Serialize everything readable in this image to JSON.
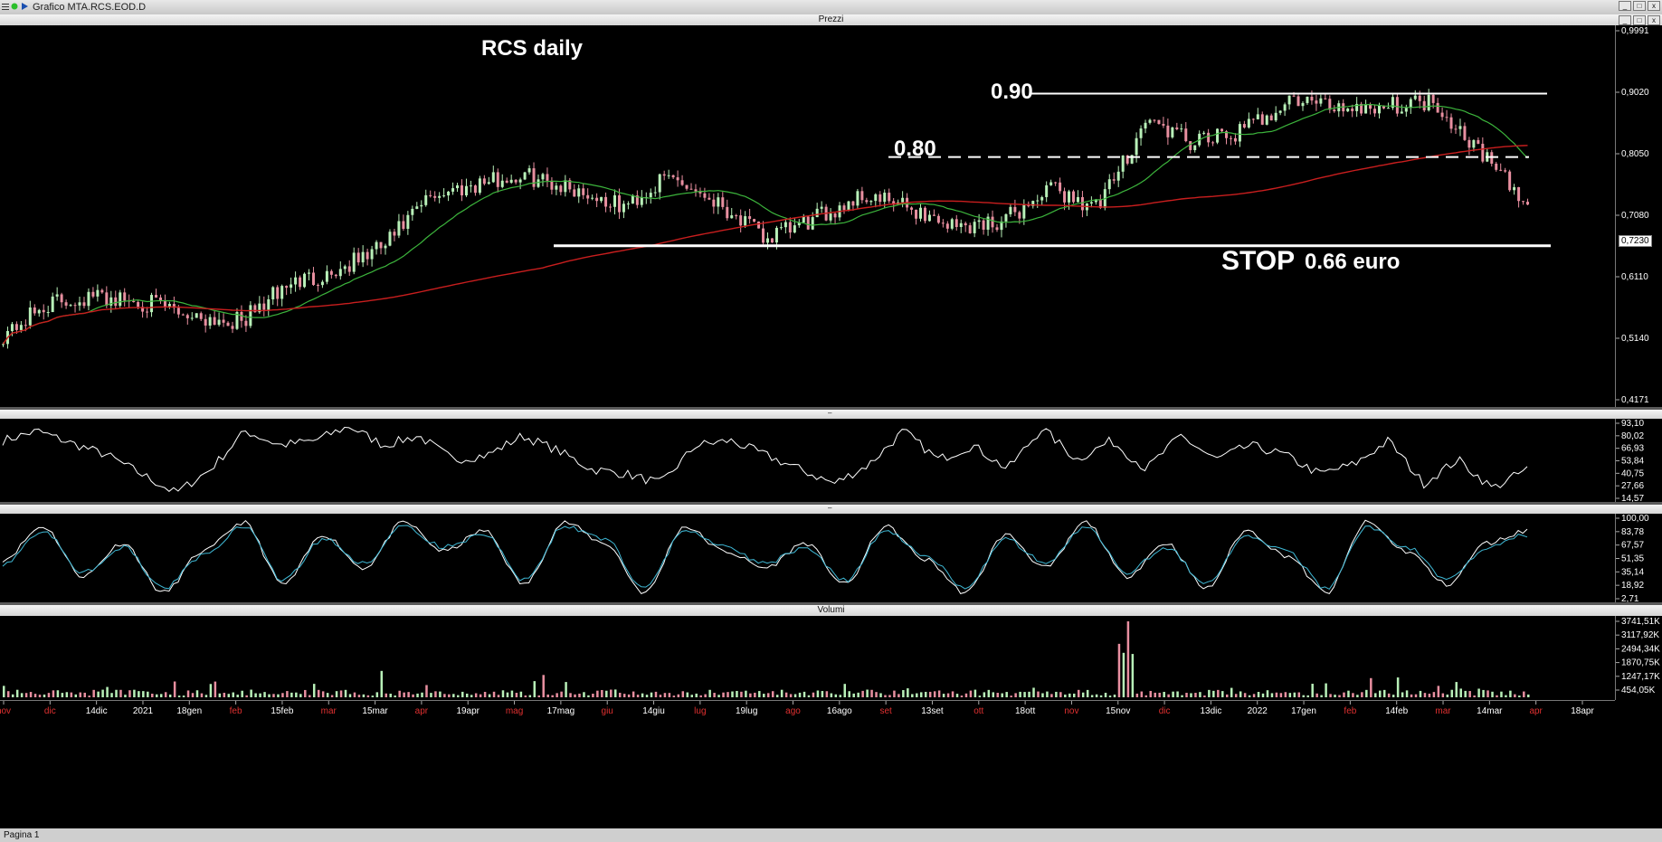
{
  "window": {
    "title": "Grafico MTA.RCS.EOD.D"
  },
  "panes": {
    "price_title": "Prezzi",
    "rsi_title": "",
    "stoch_title": "",
    "volume_title": "Volumi"
  },
  "annotations": {
    "chart_title": "RCS daily",
    "level_090": "0.90",
    "level_080": "0.80",
    "stop_word": "STOP",
    "stop_value": "0.66 euro"
  },
  "price_axis": {
    "ticks": [
      "0,9991",
      "0,9020",
      "0,8050",
      "0,7080",
      "0,6110",
      "0,5140",
      "0,4171"
    ],
    "last_price": "0,7230"
  },
  "rsi_axis": [
    "93,10",
    "80,02",
    "66,93",
    "53,84",
    "40,75",
    "27,66",
    "14,57"
  ],
  "stoch_axis": [
    "100,00",
    "83,78",
    "67,57",
    "51,35",
    "35,14",
    "18,92",
    "2,71"
  ],
  "volume_axis": [
    "3741,51K",
    "3117,92K",
    "2494,34K",
    "1870,75K",
    "1247,17K",
    "454,05K"
  ],
  "x_axis": {
    "labels": [
      {
        "t": "nov",
        "red": true
      },
      {
        "t": "dic",
        "red": true
      },
      {
        "t": "14dic",
        "red": false
      },
      {
        "t": "2021",
        "red": false
      },
      {
        "t": "18gen",
        "red": false
      },
      {
        "t": "feb",
        "red": true
      },
      {
        "t": "15feb",
        "red": false
      },
      {
        "t": "mar",
        "red": true
      },
      {
        "t": "15mar",
        "red": false
      },
      {
        "t": "apr",
        "red": true
      },
      {
        "t": "19apr",
        "red": false
      },
      {
        "t": "mag",
        "red": true
      },
      {
        "t": "17mag",
        "red": false
      },
      {
        "t": "giu",
        "red": true
      },
      {
        "t": "14giu",
        "red": false
      },
      {
        "t": "lug",
        "red": true
      },
      {
        "t": "19lug",
        "red": false
      },
      {
        "t": "ago",
        "red": true
      },
      {
        "t": "16ago",
        "red": false
      },
      {
        "t": "set",
        "red": true
      },
      {
        "t": "13set",
        "red": false
      },
      {
        "t": "ott",
        "red": true
      },
      {
        "t": "18ott",
        "red": false
      },
      {
        "t": "nov",
        "red": true
      },
      {
        "t": "15nov",
        "red": false
      },
      {
        "t": "dic",
        "red": true
      },
      {
        "t": "13dic",
        "red": false
      },
      {
        "t": "2022",
        "red": false
      },
      {
        "t": "17gen",
        "red": false
      },
      {
        "t": "feb",
        "red": true
      },
      {
        "t": "14feb",
        "red": false
      },
      {
        "t": "mar",
        "red": true
      },
      {
        "t": "14mar",
        "red": false
      },
      {
        "t": "apr",
        "red": true
      },
      {
        "t": "18apr",
        "red": false
      }
    ]
  },
  "status": {
    "text": "Pagina 1"
  },
  "colors": {
    "up": "#b8f0b8",
    "down": "#e88fa0",
    "ma_short": "#3cb43c",
    "ma_long": "#c81e1e",
    "stoch_k": "#ffffff",
    "stoch_d": "#3fb9d6"
  },
  "chart_data": [
    {
      "type": "candlestick",
      "title": "RCS daily",
      "ylim": [
        0.4171,
        0.9991
      ],
      "x": [
        "nov",
        "dic",
        "14dic",
        "2021",
        "18gen",
        "feb",
        "15feb",
        "mar",
        "15mar",
        "apr",
        "19apr",
        "mag",
        "17mag",
        "giu",
        "14giu",
        "lug",
        "19lug",
        "ago",
        "16ago",
        "set",
        "13set",
        "ott",
        "18ott",
        "nov",
        "15nov",
        "dic",
        "13dic",
        "2022",
        "17gen",
        "feb",
        "14feb",
        "mar",
        "14mar"
      ],
      "close": [
        0.52,
        0.57,
        0.58,
        0.57,
        0.55,
        0.54,
        0.6,
        0.62,
        0.66,
        0.74,
        0.76,
        0.77,
        0.75,
        0.72,
        0.77,
        0.73,
        0.67,
        0.7,
        0.74,
        0.72,
        0.69,
        0.7,
        0.75,
        0.72,
        0.86,
        0.82,
        0.84,
        0.89,
        0.88,
        0.88,
        0.89,
        0.81,
        0.72
      ],
      "horizontal_levels": [
        0.9,
        0.8,
        0.66
      ]
    },
    {
      "type": "line",
      "title": "",
      "ylim": [
        14.57,
        93.1
      ],
      "values": [
        75,
        85,
        72,
        60,
        40,
        20,
        45,
        85,
        70,
        75,
        90,
        70,
        80,
        55,
        60,
        80,
        65,
        45,
        40,
        30,
        70,
        75,
        60,
        45,
        30,
        50,
        85,
        55,
        70,
        45,
        88,
        55,
        75,
        45,
        80,
        55,
        70,
        60,
        40,
        50,
        75,
        30,
        55,
        25,
        45
      ]
    },
    {
      "type": "line",
      "title": "",
      "ylim": [
        2.71,
        100.0
      ],
      "series": [
        {
          "values": [
            50,
            90,
            30,
            70,
            10,
            60,
            95,
            20,
            80,
            40,
            95,
            60,
            85,
            20,
            95,
            70,
            10,
            90,
            60,
            40,
            70,
            20,
            90,
            50,
            10,
            80,
            40,
            95,
            30,
            70,
            15,
            85,
            55,
            10,
            95,
            60,
            20,
            70,
            85
          ]
        },
        {
          "values": [
            45,
            85,
            35,
            65,
            15,
            55,
            90,
            25,
            75,
            45,
            90,
            65,
            80,
            25,
            90,
            75,
            15,
            85,
            65,
            45,
            65,
            25,
            85,
            55,
            15,
            75,
            45,
            90,
            35,
            65,
            20,
            80,
            60,
            15,
            90,
            65,
            25,
            65,
            80
          ]
        }
      ]
    },
    {
      "type": "bar",
      "title": "Volumi",
      "ylim": [
        0,
        3741.51
      ]
    }
  ]
}
